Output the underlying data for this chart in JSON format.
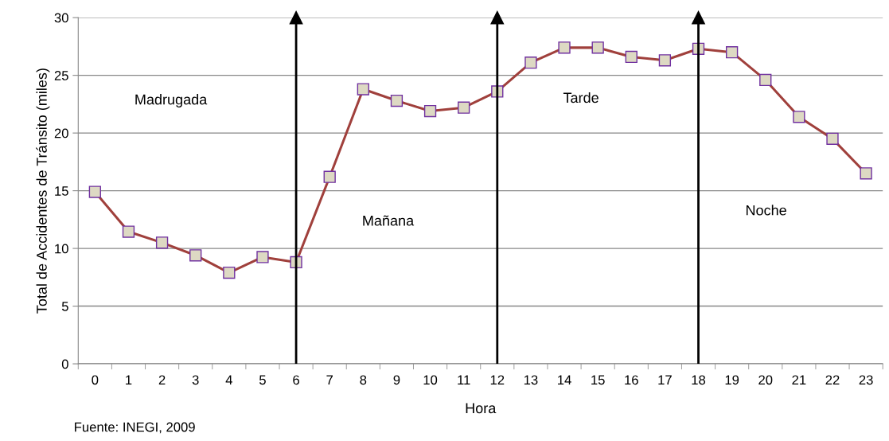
{
  "chart_data": {
    "type": "line",
    "xlabel": "Hora",
    "ylabel": "Total de Accidentes de Tránsito (miles)",
    "categories": [
      "0",
      "1",
      "2",
      "3",
      "4",
      "5",
      "6",
      "7",
      "8",
      "9",
      "10",
      "11",
      "12",
      "13",
      "14",
      "15",
      "16",
      "17",
      "18",
      "19",
      "20",
      "21",
      "22",
      "23"
    ],
    "series": [
      {
        "color": "#a0403c",
        "values": [
          14.9,
          11.45,
          10.5,
          9.4,
          7.9,
          9.25,
          8.8,
          16.2,
          23.8,
          22.8,
          21.9,
          22.2,
          23.6,
          26.1,
          27.4,
          27.4,
          26.6,
          26.3,
          27.3,
          27.0,
          24.6,
          21.4,
          19.5,
          16.5
        ]
      }
    ],
    "ylim": [
      0,
      30
    ],
    "yticks": [
      0,
      5,
      10,
      15,
      20,
      25,
      30
    ],
    "grid": "y",
    "legend": false,
    "marker": "square",
    "line_style": "solid",
    "ref_lines": [
      {
        "axis": "x",
        "value": "6",
        "color": "#000000"
      },
      {
        "axis": "x",
        "value": "12",
        "color": "#000000"
      },
      {
        "axis": "x",
        "value": "18",
        "color": "#000000"
      }
    ],
    "annotations": [
      "Madrugada",
      "Mañana",
      "Tarde",
      "Noche",
      "Fuente: INEGI, 2009"
    ]
  }
}
